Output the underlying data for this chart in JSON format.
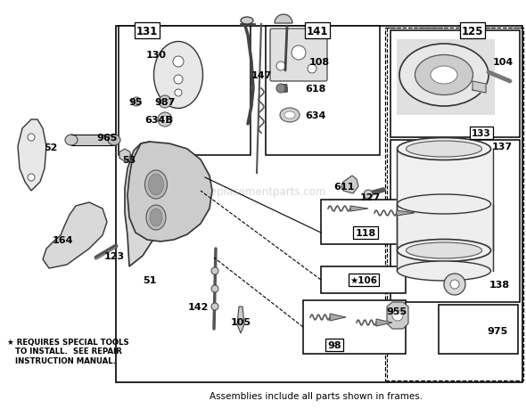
{
  "bg_color": "#ffffff",
  "footnote_star": "* REQUIRES SPECIAL TOOLS\n  TO INSTALL.  SEE REPAIR\n  INSTRUCTION MANUAL.",
  "footnote_bottom": "Assemblies include all parts shown in frames.",
  "watermark": "ereplacementparts.com",
  "figsize": [
    5.9,
    4.6
  ],
  "dpi": 100
}
